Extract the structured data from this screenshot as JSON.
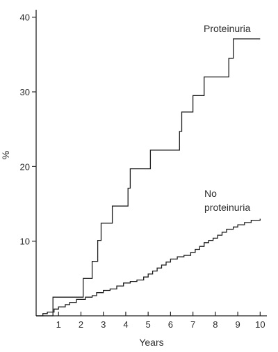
{
  "chart_data": {
    "type": "line",
    "title": "",
    "xlabel": "Years",
    "ylabel": "%",
    "xlim": [
      0,
      10.3
    ],
    "ylim": [
      0,
      41
    ],
    "xticks": [
      1,
      2,
      3,
      4,
      5,
      6,
      7,
      8,
      9,
      10
    ],
    "yticks": [
      10,
      20,
      30,
      40
    ],
    "grid": false,
    "legend": "none",
    "series": [
      {
        "name": "Proteinuria",
        "style": "step",
        "points": [
          [
            0,
            0
          ],
          [
            0.75,
            0
          ],
          [
            0.75,
            2.5
          ],
          [
            2.1,
            2.5
          ],
          [
            2.1,
            5.0
          ],
          [
            2.5,
            5.0
          ],
          [
            2.5,
            7.3
          ],
          [
            2.75,
            7.3
          ],
          [
            2.75,
            10.1
          ],
          [
            2.9,
            10.1
          ],
          [
            2.9,
            12.4
          ],
          [
            3.4,
            12.4
          ],
          [
            3.4,
            14.7
          ],
          [
            4.1,
            14.7
          ],
          [
            4.1,
            17.1
          ],
          [
            4.2,
            17.1
          ],
          [
            4.2,
            19.7
          ],
          [
            5.1,
            19.7
          ],
          [
            5.1,
            22.2
          ],
          [
            6.4,
            22.2
          ],
          [
            6.4,
            24.7
          ],
          [
            6.5,
            24.7
          ],
          [
            6.5,
            27.3
          ],
          [
            7.0,
            27.3
          ],
          [
            7.0,
            29.5
          ],
          [
            7.5,
            29.5
          ],
          [
            7.5,
            32.0
          ],
          [
            8.6,
            32.0
          ],
          [
            8.6,
            34.5
          ],
          [
            8.8,
            34.5
          ],
          [
            8.8,
            37.1
          ],
          [
            10.0,
            37.1
          ]
        ],
        "label_text": "Proteinuria"
      },
      {
        "name": "No proteinuria",
        "style": "step",
        "points": [
          [
            0,
            0
          ],
          [
            0.3,
            0.3
          ],
          [
            0.5,
            0.5
          ],
          [
            0.8,
            0.9
          ],
          [
            1.0,
            1.2
          ],
          [
            1.3,
            1.5
          ],
          [
            1.5,
            1.8
          ],
          [
            1.8,
            2.2
          ],
          [
            2.2,
            2.5
          ],
          [
            2.5,
            2.7
          ],
          [
            2.7,
            3.1
          ],
          [
            3.0,
            3.4
          ],
          [
            3.3,
            3.6
          ],
          [
            3.6,
            4.0
          ],
          [
            3.9,
            4.4
          ],
          [
            4.2,
            4.6
          ],
          [
            4.5,
            4.8
          ],
          [
            4.8,
            5.2
          ],
          [
            5.0,
            5.6
          ],
          [
            5.2,
            6.0
          ],
          [
            5.4,
            6.4
          ],
          [
            5.6,
            6.8
          ],
          [
            5.8,
            7.2
          ],
          [
            6.0,
            7.6
          ],
          [
            6.3,
            7.9
          ],
          [
            6.6,
            8.1
          ],
          [
            6.9,
            8.5
          ],
          [
            7.1,
            8.9
          ],
          [
            7.3,
            9.3
          ],
          [
            7.5,
            9.8
          ],
          [
            7.7,
            10.1
          ],
          [
            7.9,
            10.4
          ],
          [
            8.1,
            10.8
          ],
          [
            8.3,
            11.2
          ],
          [
            8.5,
            11.6
          ],
          [
            8.8,
            11.9
          ],
          [
            9.0,
            12.2
          ],
          [
            9.3,
            12.5
          ],
          [
            9.6,
            12.8
          ],
          [
            10.0,
            13.0
          ]
        ],
        "label_text": [
          "No",
          "proteinuria"
        ]
      }
    ]
  }
}
